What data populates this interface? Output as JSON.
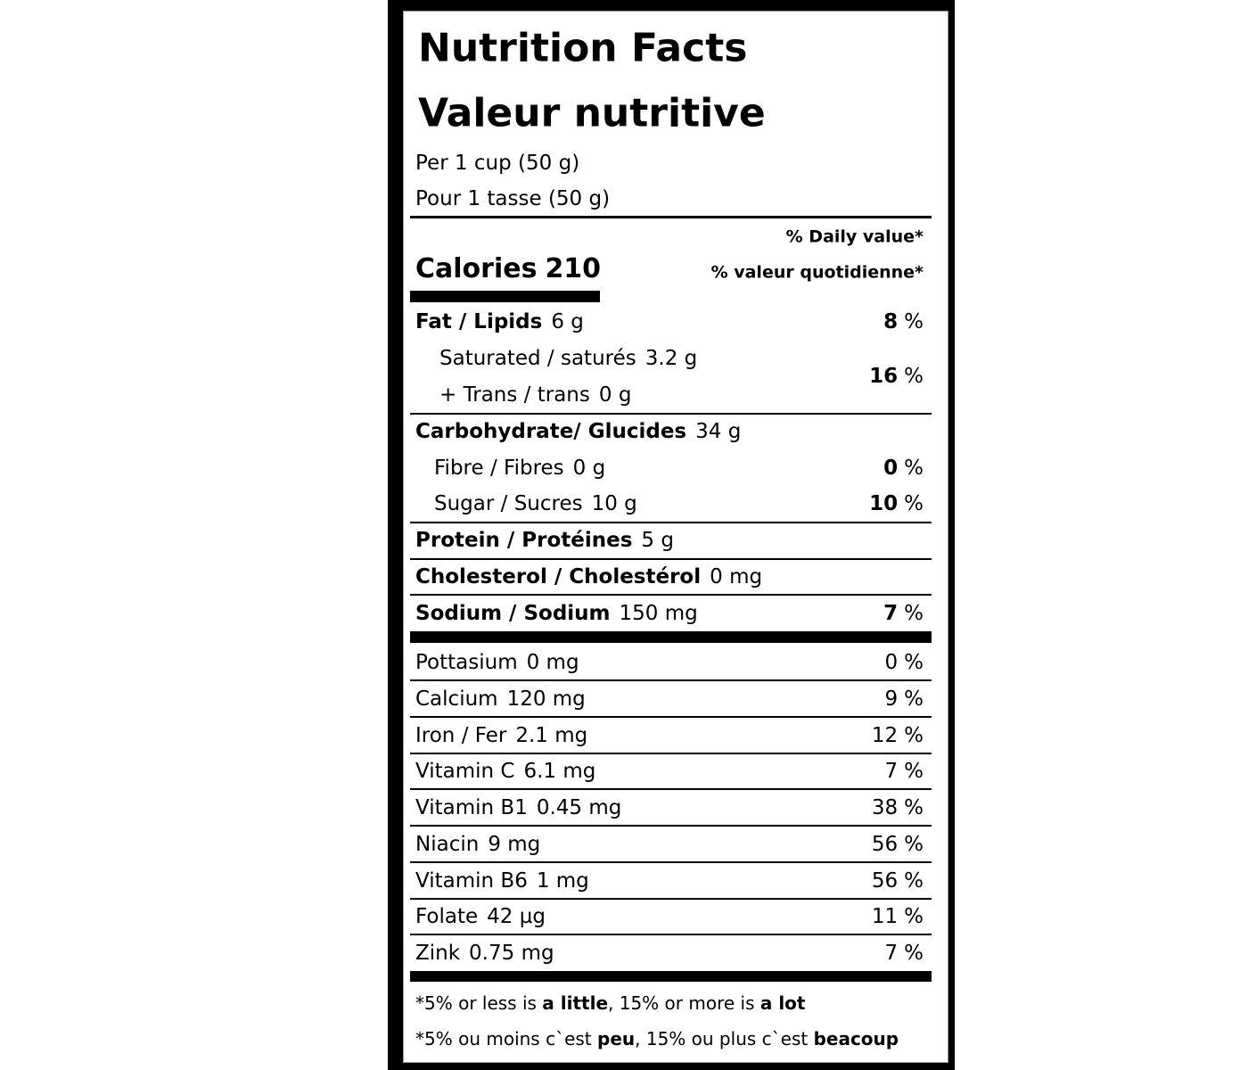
{
  "title": "Nutrition Facts",
  "title_fr": "Valeur nutritive",
  "serving": [
    "Per 1 cup (50 g)",
    "Pour 1 tasse (50 g)"
  ],
  "daily_value_header": [
    "% Daily value*",
    "% valeur quotidienne*"
  ],
  "calories": {
    "label": "Calories",
    "value": 210
  },
  "nutrients": [
    {
      "name": "Fat / Lipids",
      "amount": "6 g",
      "dv": 8,
      "unit": "%"
    },
    {
      "items": [
        {
          "name": "Saturated / saturés",
          "amount": "3.2 g"
        },
        {
          "name": "+ Trans / trans",
          "amount": "0 g"
        }
      ],
      "dv": 16,
      "unit": "%"
    },
    {
      "name": "Carbohydrate/ Glucides",
      "amount": "34 g"
    },
    {
      "name": "Fibre / Fibres",
      "amount": "0 g",
      "dv": 0,
      "unit": "%"
    },
    {
      "name": "Sugar / Sucres",
      "amount": "10 g",
      "dv": 10,
      "unit": "%"
    },
    {
      "name": "Protein / Protéines",
      "amount": "5 g"
    },
    {
      "name": "Cholesterol / Cholestérol",
      "amount": "0 mg"
    },
    {
      "name": "Sodium / Sodium",
      "amount": "150 mg",
      "dv": 7,
      "unit": "%"
    }
  ],
  "minerals": [
    {
      "name": "Pottasium",
      "amount": "0 mg",
      "dv": 0,
      "unit": "%"
    },
    {
      "name": "Calcium",
      "amount": "120 mg",
      "dv": 9,
      "unit": "%"
    },
    {
      "name": "Iron / Fer",
      "amount": "2.1 mg",
      "dv": 12,
      "unit": "%"
    },
    {
      "name": "Vitamin C",
      "amount": "6.1 mg",
      "dv": 7,
      "unit": "%"
    },
    {
      "name": "Vitamin B1",
      "amount": "0.45 mg",
      "dv": 38,
      "unit": "%"
    },
    {
      "name": "Niacin",
      "amount": "9 mg",
      "dv": 56,
      "unit": "%"
    },
    {
      "name": "Vitamin B6",
      "amount": "1 mg",
      "dv": 56,
      "unit": "%"
    },
    {
      "name": "Folate",
      "amount": "42 µg",
      "dv": 11,
      "unit": "%"
    },
    {
      "name": "Zink",
      "amount": "0.75 mg",
      "dv": 7,
      "unit": "%"
    }
  ],
  "footnotes": [
    [
      {
        "text": "*5% or less is "
      },
      {
        "text": "a little",
        "bold": true
      },
      {
        "text": ", 15% or more is "
      },
      {
        "text": "a lot",
        "bold": true
      }
    ],
    [
      {
        "text": "*5% ou moins c`est "
      },
      {
        "text": "peu",
        "bold": true
      },
      {
        "text": ", 15% ou plus c`est "
      },
      {
        "text": "beacoup",
        "bold": true
      }
    ]
  ]
}
